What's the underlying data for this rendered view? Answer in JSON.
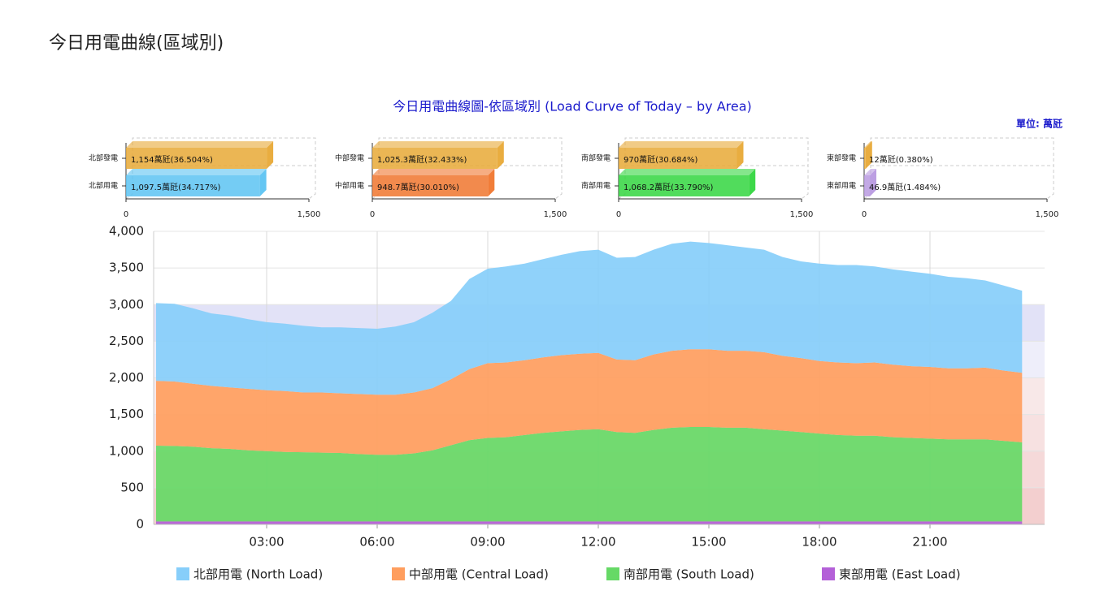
{
  "page_title": "今日用電曲線(區域別)",
  "header": {
    "chart_title": "今日用電曲線圖-依區域別 (Load Curve of Today – by Area)",
    "unit": "單位: 萬瓩"
  },
  "chart_data": [
    {
      "type": "bar",
      "orientation": "horizontal",
      "categories": [
        "北部發電",
        "北部用電"
      ],
      "values": [
        1154,
        1097.5
      ],
      "value_labels": [
        "1,154萬瓩(36.504%)",
        "1,097.5萬瓩(34.717%)"
      ],
      "colors": [
        "#e8a936",
        "#5cc3f2"
      ],
      "xlim": [
        0,
        1500
      ],
      "xticks": [
        0,
        {
          "value": 1500,
          "label": "1,500"
        }
      ]
    },
    {
      "type": "bar",
      "orientation": "horizontal",
      "categories": [
        "中部發電",
        "中部用電"
      ],
      "values": [
        1025.3,
        948.7
      ],
      "value_labels": [
        "1,025.3萬瓩(32.433%)",
        "948.7萬瓩(30.010%)"
      ],
      "colors": [
        "#e8a936",
        "#f0762e"
      ],
      "xlim": [
        0,
        1500
      ],
      "xticks": [
        0,
        {
          "value": 1500,
          "label": "1,500"
        }
      ]
    },
    {
      "type": "bar",
      "orientation": "horizontal",
      "categories": [
        "南部發電",
        "南部用電"
      ],
      "values": [
        970,
        1068.2
      ],
      "value_labels": [
        "970萬瓩(30.684%)",
        "1,068.2萬瓩(33.790%)"
      ],
      "colors": [
        "#e8a936",
        "#33d63f"
      ],
      "xlim": [
        0,
        1500
      ],
      "xticks": [
        0,
        {
          "value": 1500,
          "label": "1,500"
        }
      ]
    },
    {
      "type": "bar",
      "orientation": "horizontal",
      "categories": [
        "東部發電",
        "東部用電"
      ],
      "values": [
        12,
        46.9
      ],
      "value_labels": [
        "12萬瓩(0.380%)",
        "46.9萬瓩(1.484%)"
      ],
      "colors": [
        "#e8a936",
        "#b89ae0"
      ],
      "xlim": [
        0,
        1500
      ],
      "xticks": [
        0,
        {
          "value": 1500,
          "label": "1,500"
        }
      ]
    },
    {
      "type": "area",
      "stacked": true,
      "grid": true,
      "x": [
        "00:00",
        "00:30",
        "01:00",
        "01:30",
        "02:00",
        "02:30",
        "03:00",
        "03:30",
        "04:00",
        "04:30",
        "05:00",
        "05:30",
        "06:00",
        "06:30",
        "07:00",
        "07:30",
        "08:00",
        "08:30",
        "09:00",
        "09:30",
        "10:00",
        "10:30",
        "11:00",
        "11:30",
        "12:00",
        "12:30",
        "13:00",
        "13:30",
        "14:00",
        "14:30",
        "15:00",
        "15:30",
        "16:00",
        "16:30",
        "17:00",
        "17:30",
        "18:00",
        "18:30",
        "19:00",
        "19:30",
        "20:00",
        "20:30",
        "21:00",
        "21:30",
        "22:00",
        "22:30",
        "23:00",
        "23:30"
      ],
      "xlim": [
        "00:00",
        "24:00"
      ],
      "xticks": [
        "03:00",
        "06:00",
        "09:00",
        "12:00",
        "15:00",
        "18:00",
        "21:00"
      ],
      "ylim": [
        0,
        4000
      ],
      "yticks": [
        0,
        500,
        {
          "value": 1000,
          "label": "1,000"
        },
        {
          "value": 1500,
          "label": "1,500"
        },
        {
          "value": 2000,
          "label": "2,000"
        },
        {
          "value": 2500,
          "label": "2,500"
        },
        {
          "value": 3000,
          "label": "3,000"
        },
        {
          "value": 3500,
          "label": "3,500"
        },
        {
          "value": 4000,
          "label": "4,000"
        }
      ],
      "plot_bands": [
        {
          "from": 0,
          "to": 500,
          "color": "#f3cfcf"
        },
        {
          "from": 500,
          "to": 1000,
          "color": "#f5d9d9"
        },
        {
          "from": 1000,
          "to": 1500,
          "color": "#f7e1e1"
        },
        {
          "from": 1500,
          "to": 2000,
          "color": "#f8e8e8"
        },
        {
          "from": 2000,
          "to": 2500,
          "color": "#eeeefa"
        },
        {
          "from": 2500,
          "to": 3000,
          "color": "#e2e2f7"
        }
      ],
      "series": [
        {
          "name": "北部用電 (North Load)",
          "color": "#87cefa",
          "values": [
            1060,
            1060,
            1030,
            990,
            980,
            950,
            930,
            920,
            910,
            890,
            900,
            900,
            900,
            930,
            960,
            1030,
            1070,
            1230,
            1290,
            1310,
            1320,
            1340,
            1370,
            1400,
            1410,
            1390,
            1410,
            1430,
            1460,
            1470,
            1450,
            1440,
            1410,
            1400,
            1350,
            1320,
            1330,
            1330,
            1340,
            1310,
            1300,
            1290,
            1270,
            1250,
            1230,
            1190,
            1160,
            1120
          ]
        },
        {
          "name": "中部用電 (Central Load)",
          "color": "#ff9e5e",
          "values": [
            885,
            880,
            860,
            850,
            840,
            840,
            830,
            830,
            815,
            820,
            815,
            820,
            820,
            820,
            830,
            850,
            900,
            970,
            1020,
            1020,
            1020,
            1030,
            1040,
            1040,
            1040,
            990,
            990,
            1030,
            1050,
            1060,
            1060,
            1050,
            1050,
            1050,
            1020,
            1010,
            990,
            990,
            990,
            1000,
            990,
            980,
            980,
            970,
            970,
            980,
            960,
            950
          ]
        },
        {
          "name": "南部用電 (South Load)",
          "color": "#66d966",
          "values": [
            1035,
            1030,
            1020,
            1000,
            990,
            970,
            960,
            950,
            945,
            940,
            935,
            920,
            910,
            910,
            930,
            970,
            1040,
            1110,
            1140,
            1150,
            1180,
            1210,
            1230,
            1250,
            1260,
            1220,
            1210,
            1250,
            1280,
            1290,
            1290,
            1280,
            1280,
            1260,
            1240,
            1220,
            1200,
            1180,
            1170,
            1170,
            1150,
            1140,
            1130,
            1120,
            1120,
            1120,
            1100,
            1080
          ]
        },
        {
          "name": "東部用電 (East Load)",
          "color": "#b460d8",
          "values": [
            40,
            40,
            40,
            40,
            40,
            40,
            40,
            40,
            40,
            40,
            40,
            40,
            40,
            40,
            40,
            40,
            40,
            40,
            40,
            40,
            40,
            40,
            40,
            40,
            40,
            40,
            40,
            40,
            40,
            40,
            40,
            40,
            40,
            40,
            40,
            40,
            40,
            40,
            40,
            40,
            40,
            40,
            40,
            40,
            40,
            40,
            40,
            40
          ]
        }
      ]
    }
  ]
}
